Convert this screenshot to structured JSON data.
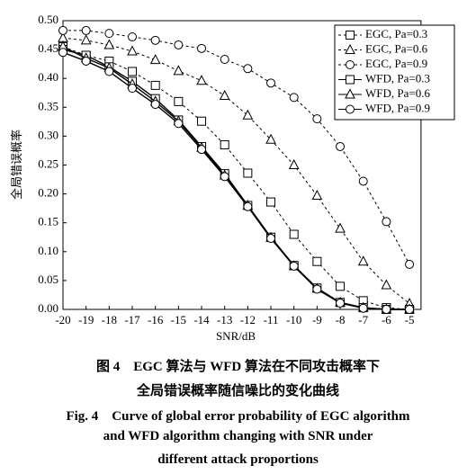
{
  "chart_data": {
    "type": "line",
    "x_label": "SNR/dB",
    "y_label": "全局错误概率",
    "x": [
      -20,
      -19,
      -18,
      -17,
      -16,
      -15,
      -14,
      -13,
      -12,
      -11,
      -10,
      -9,
      -8,
      -7,
      -6,
      -5
    ],
    "xlim": [
      -20,
      -4.5
    ],
    "xticks": [
      -20,
      -19,
      -18,
      -17,
      -16,
      -15,
      -14,
      -13,
      -12,
      -11,
      -10,
      -9,
      -8,
      -7,
      -6,
      -5
    ],
    "ylim": [
      0,
      0.5
    ],
    "yticks": [
      {
        "value": 0,
        "label": "0.00"
      },
      0.05,
      {
        "value": 0.1,
        "label": "0.10"
      },
      0.15,
      {
        "value": 0.2,
        "label": "0.20"
      },
      0.25,
      {
        "value": 0.3,
        "label": "0.30"
      },
      0.35,
      {
        "value": 0.4,
        "label": "0.40"
      },
      0.45,
      {
        "value": 0.5,
        "label": "0.50"
      }
    ],
    "legend": "upper right",
    "series": [
      {
        "name": "EGC, Pa=0.3",
        "color": "#000000",
        "dashed": true,
        "marker": "square",
        "values": [
          0.455,
          0.44,
          0.43,
          0.412,
          0.388,
          0.36,
          0.326,
          0.285,
          0.236,
          0.186,
          0.13,
          0.083,
          0.04,
          0.015,
          0.003,
          0.0
        ]
      },
      {
        "name": "EGC, Pa=0.6",
        "color": "#000000",
        "dashed": true,
        "marker": "triangle",
        "values": [
          0.47,
          0.466,
          0.458,
          0.447,
          0.432,
          0.413,
          0.396,
          0.37,
          0.336,
          0.294,
          0.25,
          0.197,
          0.14,
          0.083,
          0.042,
          0.01
        ]
      },
      {
        "name": "EGC, Pa=0.9",
        "color": "#000000",
        "dashed": true,
        "marker": "circle",
        "values": [
          0.483,
          0.483,
          0.478,
          0.472,
          0.466,
          0.458,
          0.452,
          0.433,
          0.417,
          0.392,
          0.367,
          0.33,
          0.282,
          0.222,
          0.152,
          0.078
        ]
      },
      {
        "name": "WFD, Pa=0.3",
        "color": "#000000",
        "dashed": false,
        "marker": "square",
        "values": [
          0.45,
          0.44,
          0.42,
          0.395,
          0.365,
          0.328,
          0.282,
          0.235,
          0.18,
          0.125,
          0.076,
          0.037,
          0.012,
          0.003,
          0.0,
          0.0
        ]
      },
      {
        "name": "WFD, Pa=0.6",
        "color": "#000000",
        "dashed": false,
        "marker": "triangle",
        "values": [
          0.455,
          0.435,
          0.418,
          0.39,
          0.36,
          0.326,
          0.28,
          0.232,
          0.18,
          0.124,
          0.075,
          0.036,
          0.012,
          0.003,
          0.0,
          0.0
        ]
      },
      {
        "name": "WFD, Pa=0.9",
        "color": "#000000",
        "dashed": false,
        "marker": "circle",
        "values": [
          0.445,
          0.43,
          0.412,
          0.383,
          0.355,
          0.322,
          0.277,
          0.23,
          0.178,
          0.123,
          0.075,
          0.035,
          0.011,
          0.002,
          0.0,
          0.0
        ]
      }
    ]
  },
  "caption": {
    "cn": [
      "图 4　EGC 算法与 WFD 算法在不同攻击概率下",
      "全局错误概率随信噪比的变化曲线"
    ],
    "en": [
      "Fig. 4　Curve of global error probability of EGC algorithm",
      "and WFD algorithm changing with SNR under",
      "different attack proportions"
    ]
  }
}
